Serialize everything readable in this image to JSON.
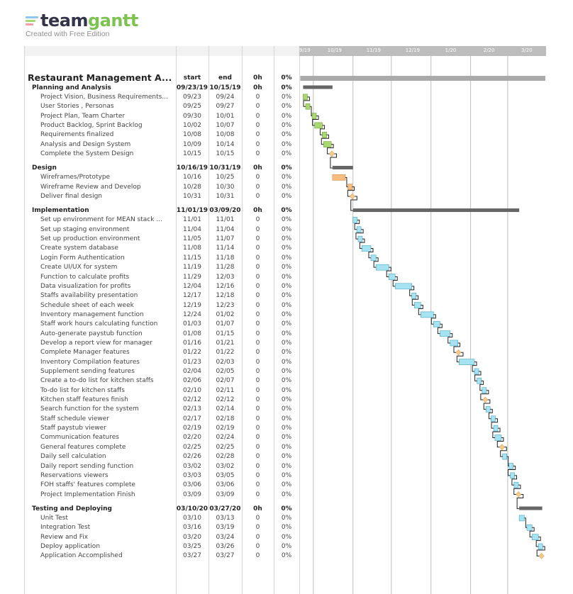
{
  "brand": {
    "name_dark": "team",
    "name_light": "gantt",
    "subtitle": "Created with Free Edition",
    "colors": {
      "dark": "#33334a",
      "light": "#7cc350",
      "stripe1": "#8fc7f0",
      "stripe2": "#a9d86e",
      "stripe3": "#f2a0a6"
    }
  },
  "table": {
    "headers": {
      "start": "start",
      "end": "end",
      "hours": "0h",
      "pct": "0%"
    },
    "project": {
      "name": "Restaurant Management A...",
      "start": "start",
      "end": "end",
      "hours": "0h",
      "pct": "0%"
    }
  },
  "chart_data": {
    "type": "gantt",
    "timeline": {
      "start": "2019-09-20",
      "end": "2020-03-31",
      "months": [
        "9/19",
        "10/19",
        "11/19",
        "12/19",
        "1/20",
        "2/20",
        "3/20"
      ]
    },
    "groups": [
      {
        "name": "Planning and Analysis",
        "start": "09/23/19",
        "end": "10/15/19",
        "hours": "0h",
        "pct": "0%",
        "color": "#a9d86e",
        "bar": [
          "2019-09-23",
          "2019-10-15"
        ],
        "tasks": [
          {
            "name": "Project Vision, Business Requirements...",
            "start": "09/23",
            "end": "09/24",
            "hours": "0",
            "pct": "0%",
            "bar": [
              "2019-09-23",
              "2019-09-24"
            ]
          },
          {
            "name": "User Stories , Personas",
            "start": "09/25",
            "end": "09/27",
            "hours": "0",
            "pct": "0%",
            "bar": [
              "2019-09-25",
              "2019-09-27"
            ]
          },
          {
            "name": "Project Plan, Team Charter",
            "start": "09/30",
            "end": "10/01",
            "hours": "0",
            "pct": "0%",
            "bar": [
              "2019-09-30",
              "2019-10-01"
            ]
          },
          {
            "name": "Product Backlog, Sprint Backlog",
            "start": "10/02",
            "end": "10/07",
            "hours": "0",
            "pct": "0%",
            "bar": [
              "2019-10-02",
              "2019-10-07"
            ]
          },
          {
            "name": "Requirements finalized",
            "start": "10/08",
            "end": "10/08",
            "hours": "0",
            "pct": "0%",
            "bar": [
              "2019-10-08",
              "2019-10-08"
            ]
          },
          {
            "name": "Analysis and Design System",
            "start": "10/09",
            "end": "10/14",
            "hours": "0",
            "pct": "0%",
            "bar": [
              "2019-10-09",
              "2019-10-14"
            ]
          },
          {
            "name": "Complete the System Design",
            "start": "10/15",
            "end": "10/15",
            "hours": "0",
            "pct": "0%",
            "milestone": true,
            "bar": [
              "2019-10-15",
              "2019-10-15"
            ]
          }
        ]
      },
      {
        "name": "Design",
        "start": "10/16/19",
        "end": "10/31/19",
        "hours": "0h",
        "pct": "0%",
        "color": "#f9bd7f",
        "bar": [
          "2019-10-16",
          "2019-10-31"
        ],
        "tasks": [
          {
            "name": "Wireframes/Prototype",
            "start": "10/16",
            "end": "10/25",
            "hours": "0",
            "pct": "0%",
            "bar": [
              "2019-10-16",
              "2019-10-25"
            ]
          },
          {
            "name": "Wireframe Review and Develop",
            "start": "10/28",
            "end": "10/30",
            "hours": "0",
            "pct": "0%",
            "bar": [
              "2019-10-28",
              "2019-10-30"
            ]
          },
          {
            "name": "Deliver final design",
            "start": "10/31",
            "end": "10/31",
            "hours": "0",
            "pct": "0%",
            "milestone": true,
            "bar": [
              "2019-10-31",
              "2019-10-31"
            ]
          }
        ]
      },
      {
        "name": "Implementation",
        "start": "11/01/19",
        "end": "03/09/20",
        "hours": "0h",
        "pct": "0%",
        "color": "#a5e3f2",
        "bar": [
          "2019-11-01",
          "2020-03-09"
        ],
        "tasks": [
          {
            "name": "Set up environment for MEAN stack ...",
            "start": "11/01",
            "end": "11/01",
            "hours": "0",
            "pct": "0%",
            "bar": [
              "2019-11-01",
              "2019-11-01"
            ]
          },
          {
            "name": "Set up staging environment",
            "start": "11/04",
            "end": "11/04",
            "hours": "0",
            "pct": "0%",
            "bar": [
              "2019-11-04",
              "2019-11-04"
            ]
          },
          {
            "name": "Set up production environment",
            "start": "11/05",
            "end": "11/07",
            "hours": "0",
            "pct": "0%",
            "bar": [
              "2019-11-05",
              "2019-11-07"
            ]
          },
          {
            "name": "Create system database",
            "start": "11/08",
            "end": "11/14",
            "hours": "0",
            "pct": "0%",
            "bar": [
              "2019-11-08",
              "2019-11-14"
            ]
          },
          {
            "name": "Login Form Authentication",
            "start": "11/15",
            "end": "11/18",
            "hours": "0",
            "pct": "0%",
            "bar": [
              "2019-11-15",
              "2019-11-18"
            ]
          },
          {
            "name": "Create UI/UX for system",
            "start": "11/19",
            "end": "11/28",
            "hours": "0",
            "pct": "0%",
            "bar": [
              "2019-11-19",
              "2019-11-28"
            ]
          },
          {
            "name": "Function to calculate profits",
            "start": "11/29",
            "end": "12/03",
            "hours": "0",
            "pct": "0%",
            "bar": [
              "2019-11-29",
              "2019-12-03"
            ]
          },
          {
            "name": "Data visualization for profits",
            "start": "12/04",
            "end": "12/16",
            "hours": "0",
            "pct": "0%",
            "bar": [
              "2019-12-04",
              "2019-12-16"
            ]
          },
          {
            "name": "Staffs availability presentation",
            "start": "12/17",
            "end": "12/18",
            "hours": "0",
            "pct": "0%",
            "bar": [
              "2019-12-17",
              "2019-12-18"
            ]
          },
          {
            "name": "Schedule sheet of each week",
            "start": "12/19",
            "end": "12/23",
            "hours": "0",
            "pct": "0%",
            "bar": [
              "2019-12-19",
              "2019-12-23"
            ]
          },
          {
            "name": "Inventory management function",
            "start": "12/24",
            "end": "01/02",
            "hours": "0",
            "pct": "0%",
            "bar": [
              "2019-12-24",
              "2020-01-02"
            ]
          },
          {
            "name": "Staff work hours calculating function",
            "start": "01/03",
            "end": "01/07",
            "hours": "0",
            "pct": "0%",
            "bar": [
              "2020-01-03",
              "2020-01-07"
            ]
          },
          {
            "name": "Auto-generate paystub function",
            "start": "01/08",
            "end": "01/15",
            "hours": "0",
            "pct": "0%",
            "bar": [
              "2020-01-08",
              "2020-01-15"
            ]
          },
          {
            "name": "Develop a report view for manager",
            "start": "01/16",
            "end": "01/21",
            "hours": "0",
            "pct": "0%",
            "bar": [
              "2020-01-16",
              "2020-01-21"
            ]
          },
          {
            "name": "Complete Manager features",
            "start": "01/22",
            "end": "01/22",
            "hours": "0",
            "pct": "0%",
            "milestone": true,
            "bar": [
              "2020-01-22",
              "2020-01-22"
            ]
          },
          {
            "name": "Inventory Compilation features",
            "start": "01/23",
            "end": "02/03",
            "hours": "0",
            "pct": "0%",
            "bar": [
              "2020-01-23",
              "2020-02-03"
            ]
          },
          {
            "name": "Supplement sending features",
            "start": "02/04",
            "end": "02/05",
            "hours": "0",
            "pct": "0%",
            "bar": [
              "2020-02-04",
              "2020-02-05"
            ]
          },
          {
            "name": "Create a to-do list for kitchen staffs",
            "start": "02/06",
            "end": "02/07",
            "hours": "0",
            "pct": "0%",
            "bar": [
              "2020-02-06",
              "2020-02-07"
            ]
          },
          {
            "name": "To-do list for kitchen staffs",
            "start": "02/10",
            "end": "02/11",
            "hours": "0",
            "pct": "0%",
            "bar": [
              "2020-02-10",
              "2020-02-11"
            ]
          },
          {
            "name": "Kitchen staff features finish",
            "start": "02/12",
            "end": "02/12",
            "hours": "0",
            "pct": "0%",
            "milestone": true,
            "bar": [
              "2020-02-12",
              "2020-02-12"
            ]
          },
          {
            "name": "Search function for the system",
            "start": "02/13",
            "end": "02/14",
            "hours": "0",
            "pct": "0%",
            "bar": [
              "2020-02-13",
              "2020-02-14"
            ]
          },
          {
            "name": "Staff schedule viewer",
            "start": "02/17",
            "end": "02/18",
            "hours": "0",
            "pct": "0%",
            "bar": [
              "2020-02-17",
              "2020-02-18"
            ]
          },
          {
            "name": "Staff paystub viewer",
            "start": "02/19",
            "end": "02/19",
            "hours": "0",
            "pct": "0%",
            "bar": [
              "2020-02-19",
              "2020-02-19"
            ]
          },
          {
            "name": "Communication features",
            "start": "02/20",
            "end": "02/24",
            "hours": "0",
            "pct": "0%",
            "bar": [
              "2020-02-20",
              "2020-02-24"
            ]
          },
          {
            "name": "General features complete",
            "start": "02/25",
            "end": "02/25",
            "hours": "0",
            "pct": "0%",
            "milestone": true,
            "bar": [
              "2020-02-25",
              "2020-02-25"
            ]
          },
          {
            "name": "Daily sell calculation",
            "start": "02/26",
            "end": "02/28",
            "hours": "0",
            "pct": "0%",
            "bar": [
              "2020-02-26",
              "2020-02-28"
            ]
          },
          {
            "name": "Daily report sending function",
            "start": "03/02",
            "end": "03/02",
            "hours": "0",
            "pct": "0%",
            "bar": [
              "2020-03-02",
              "2020-03-02"
            ]
          },
          {
            "name": "Reservations viewers",
            "start": "03/03",
            "end": "03/05",
            "hours": "0",
            "pct": "0%",
            "bar": [
              "2020-03-03",
              "2020-03-05"
            ]
          },
          {
            "name": "FOH staffs' features complete",
            "start": "03/06",
            "end": "03/06",
            "hours": "0",
            "pct": "0%",
            "bar": [
              "2020-03-06",
              "2020-03-06"
            ]
          },
          {
            "name": "Project Implementation Finish",
            "start": "03/09",
            "end": "03/09",
            "hours": "0",
            "pct": "0%",
            "milestone": true,
            "bar": [
              "2020-03-09",
              "2020-03-09"
            ]
          }
        ]
      },
      {
        "name": "Testing and Deploying",
        "start": "03/10/20",
        "end": "03/27/20",
        "hours": "0h",
        "pct": "0%",
        "color": "#a5e3f2",
        "bar": [
          "2020-03-10",
          "2020-03-27"
        ],
        "tasks": [
          {
            "name": "Unit Test",
            "start": "03/10",
            "end": "03/13",
            "hours": "0",
            "pct": "0%",
            "bar": [
              "2020-03-10",
              "2020-03-13"
            ]
          },
          {
            "name": "Integration Test",
            "start": "03/16",
            "end": "03/19",
            "hours": "0",
            "pct": "0%",
            "bar": [
              "2020-03-16",
              "2020-03-19"
            ]
          },
          {
            "name": "Review and Fix",
            "start": "03/20",
            "end": "03/24",
            "hours": "0",
            "pct": "0%",
            "bar": [
              "2020-03-20",
              "2020-03-24"
            ]
          },
          {
            "name": "Deploy application",
            "start": "03/25",
            "end": "03/26",
            "hours": "0",
            "pct": "0%",
            "bar": [
              "2020-03-25",
              "2020-03-26"
            ]
          },
          {
            "name": "Application Accomplished",
            "start": "03/27",
            "end": "03/27",
            "hours": "0",
            "pct": "0%",
            "milestone": true,
            "bar": [
              "2020-03-27",
              "2020-03-27"
            ]
          }
        ]
      }
    ],
    "colors": {
      "summary_bar": "#666666",
      "project_bar": "#aaaaaa",
      "milestone": "#f5c98a",
      "grid": "#bdbdbd",
      "header": "#bdbdbd"
    }
  }
}
